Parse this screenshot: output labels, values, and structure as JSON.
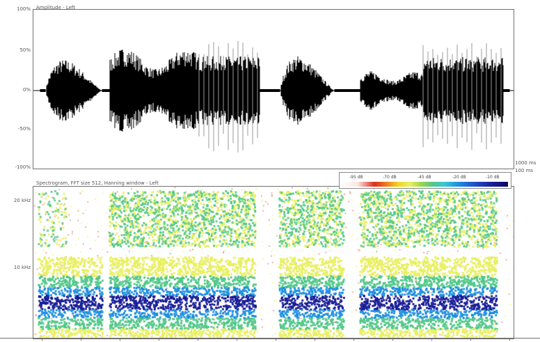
{
  "waveform": {
    "title": "Amplitude - Left",
    "y_ticks": [
      "100%",
      "50%",
      "0%",
      "-50%",
      "-100%"
    ],
    "y_levels": [
      1,
      0.5,
      0,
      -0.5,
      -1
    ]
  },
  "spectrogram": {
    "title": "Spectrogram, FFT size 512, Hanning window - Left",
    "y_ticks": [
      "20 kHz",
      "10 kHz"
    ],
    "y_levels_khz": [
      20,
      10
    ]
  },
  "legend": {
    "labels": [
      "-95 dB",
      "-70 dB",
      "-45 dB",
      "-20 dB",
      "-10 dB"
    ]
  },
  "right_labels": {
    "time_scale": "1000 ms",
    "time_scale_2": "100 ms"
  },
  "colors": {
    "waveform": "#000000",
    "waveform_transient": "#9a9a9a",
    "spec_low": "#e8f060",
    "spec_mid": "#52c88a",
    "spec_high": "#1e90e0",
    "spec_peak": "#1a1e98"
  }
}
